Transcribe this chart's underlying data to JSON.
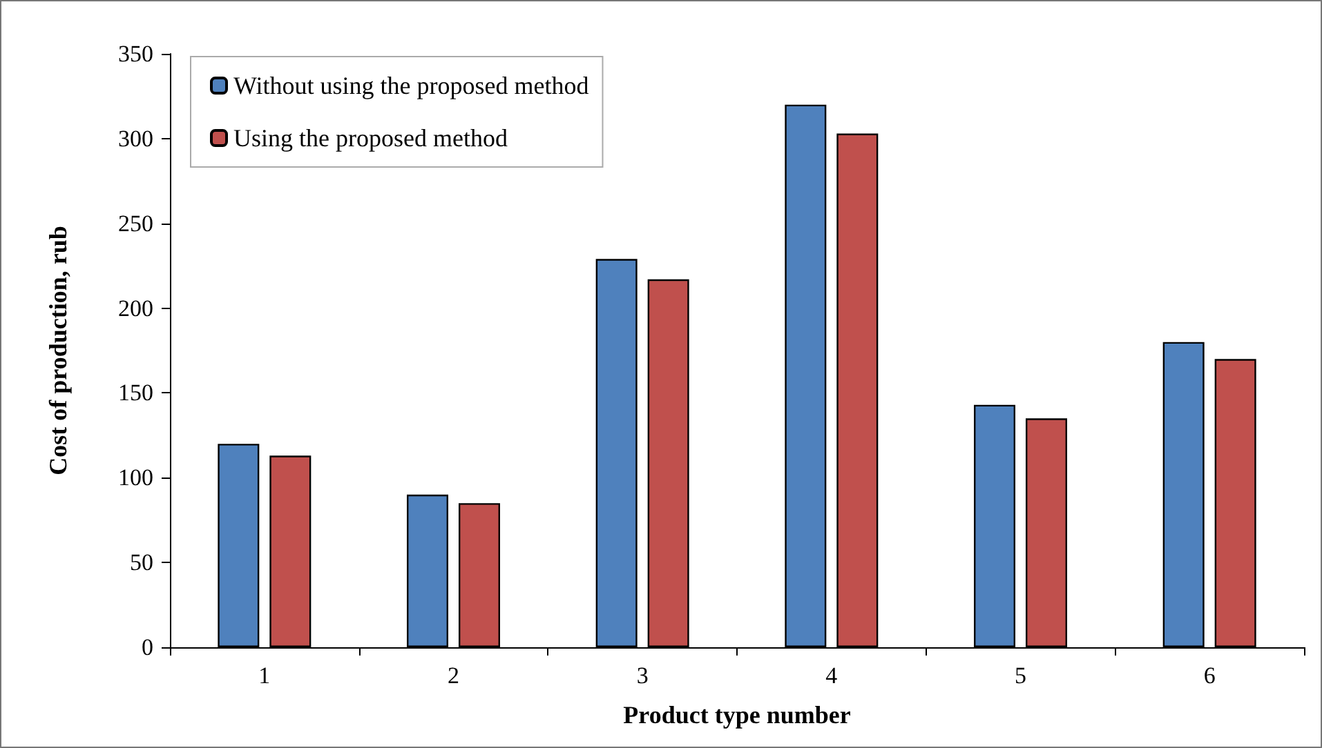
{
  "chart_data": {
    "type": "bar",
    "xlabel": "Product type number",
    "ylabel": "Cost of production, rub",
    "categories": [
      "1",
      "2",
      "3",
      "4",
      "5",
      "6"
    ],
    "series": [
      {
        "name": "Without using the proposed method",
        "color": "#4f81bd",
        "values": [
          120,
          90,
          229,
          320,
          143,
          180
        ]
      },
      {
        "name": "Using the proposed method",
        "color": "#c0504d",
        "values": [
          113,
          85,
          217,
          303,
          135,
          170
        ]
      }
    ],
    "ylim": [
      0,
      350
    ],
    "yticks": [
      0,
      50,
      100,
      150,
      200,
      250,
      300,
      350
    ],
    "grid": false,
    "legend": "top left"
  }
}
